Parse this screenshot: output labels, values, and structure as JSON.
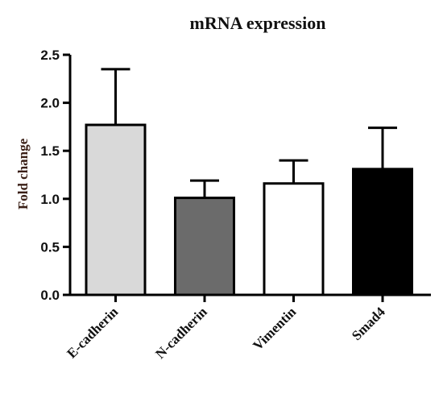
{
  "chart_data": {
    "type": "bar",
    "title": "mRNA expression",
    "xlabel": "",
    "ylabel": "Fold change",
    "ylim": [
      0,
      2.5
    ],
    "yticks": [
      "0.0",
      "0.5",
      "1.0",
      "1.5",
      "2.0",
      "2.5"
    ],
    "categories": [
      "E-cadherin",
      "N-cadherin",
      "Vimentin",
      "Smad4"
    ],
    "values": [
      1.77,
      1.01,
      1.16,
      1.31
    ],
    "error_upper": [
      2.35,
      1.19,
      1.4,
      1.74
    ],
    "colors": [
      "#d9d9d9",
      "#6b6b6b",
      "#ffffff",
      "#000000"
    ],
    "grid": false,
    "legend": "none"
  }
}
